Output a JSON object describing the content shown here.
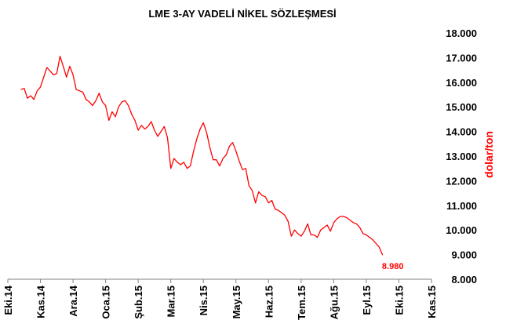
{
  "chart_data": {
    "type": "line",
    "title": "LME 3-AY VADELİ NİKEL SÖZLEŞMESİ",
    "ylabel": "dolar/ton",
    "xlabel": "",
    "ylim": [
      8000,
      18000
    ],
    "y_ticks": [
      "18.000",
      "17.000",
      "16.000",
      "15.000",
      "14.000",
      "13.000",
      "12.000",
      "11.000",
      "10.000",
      "9.000",
      "8.000"
    ],
    "x_ticks": [
      "Eki.14",
      "Kas.14",
      "Ara.14",
      "Oca.15",
      "Şub.15",
      "Mar.15",
      "Nis.15",
      "May.15",
      "Haz.15",
      "Tem.15",
      "Ağu.15",
      "Eyl.15",
      "Eki.15",
      "Kas.15"
    ],
    "grid": false,
    "legend": "none",
    "line_color": "#ff0000",
    "end_label": "8.980",
    "series": [
      {
        "x": [
          0.4,
          0.5,
          0.6,
          0.7,
          0.8,
          0.9,
          1.0,
          1.2,
          1.3,
          1.4,
          1.5,
          1.6,
          1.7,
          1.8,
          1.9,
          2.0,
          2.1,
          2.2,
          2.3,
          2.4,
          2.5,
          2.6,
          2.7,
          2.8,
          2.9,
          3.0,
          3.1,
          3.2,
          3.3,
          3.4,
          3.5,
          3.6,
          3.7,
          3.8,
          3.9,
          4.0,
          4.1,
          4.2,
          4.3,
          4.4,
          4.5,
          4.6,
          4.7,
          4.8,
          4.9,
          5.0,
          5.1,
          5.2,
          5.3,
          5.4,
          5.5,
          5.6,
          5.7,
          5.8,
          5.9,
          6.0,
          6.1,
          6.2,
          6.3,
          6.4,
          6.5,
          6.6,
          6.7,
          6.8,
          6.9,
          7.0,
          7.1,
          7.2,
          7.3,
          7.4,
          7.5,
          7.6,
          7.7,
          7.8,
          7.9,
          8.0,
          8.1,
          8.2,
          8.3,
          8.4,
          8.5,
          8.6,
          8.7,
          8.8,
          8.9,
          9.0,
          9.1,
          9.2,
          9.3,
          9.4,
          9.5,
          9.6,
          9.7,
          9.8,
          9.9,
          10.0,
          10.1,
          10.2,
          10.3,
          10.4,
          10.5,
          10.6,
          10.7,
          10.8,
          10.9,
          11.0,
          11.1,
          11.2,
          11.3,
          11.4,
          11.5,
          11.6,
          11.7,
          11.8,
          11.9,
          12.0,
          12.1,
          12.2,
          12.3,
          12.4,
          12.5,
          12.6,
          12.7,
          12.8,
          12.9,
          13.0,
          13.1,
          13.2,
          13.4
        ],
        "values": [
          15700,
          15750,
          15350,
          15450,
          15300,
          15650,
          15800,
          16600,
          16450,
          16300,
          16350,
          17050,
          16650,
          16200,
          16650,
          16300,
          15700,
          15650,
          15600,
          15300,
          15200,
          15050,
          15250,
          15550,
          15200,
          15050,
          14450,
          14800,
          14600,
          15000,
          15200,
          15250,
          15050,
          14700,
          14450,
          14050,
          14250,
          14100,
          14200,
          14400,
          14050,
          13800,
          14000,
          14200,
          13750,
          12500,
          12900,
          12750,
          12650,
          12750,
          12500,
          12600,
          13200,
          13700,
          14100,
          14350,
          13950,
          13350,
          12850,
          12850,
          12600,
          12900,
          13050,
          13400,
          13550,
          13200,
          12800,
          12450,
          12500,
          11800,
          11600,
          11100,
          11550,
          11400,
          11350,
          11100,
          11200,
          10850,
          10800,
          10700,
          10600,
          10350,
          9750,
          10000,
          9850,
          9750,
          9950,
          10250,
          9800,
          9800,
          9700,
          10000,
          10100,
          10200,
          9950,
          10300,
          10450,
          10550,
          10550,
          10500,
          10400,
          10300,
          10250,
          10100,
          9850,
          9800,
          9700,
          9600,
          9450,
          9300,
          8980,
          8980,
          8980,
          8980,
          8980,
          8980,
          8980,
          8980,
          8980,
          8980,
          8980,
          8980,
          8980,
          8980,
          8980,
          8980,
          8980,
          8980,
          8980
        ]
      }
    ]
  }
}
